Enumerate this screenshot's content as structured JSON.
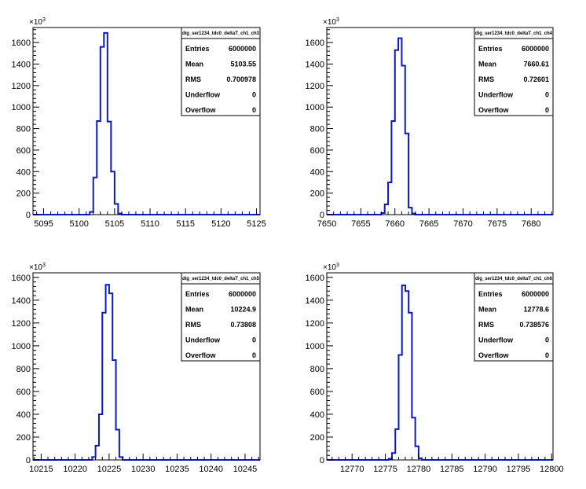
{
  "chart_data": [
    {
      "type": "histogram",
      "title": "dig_ser1234_tdc0_deltaT_ch1_ch3",
      "x_range": [
        5093.5,
        5125.5
      ],
      "y_range": [
        0,
        1740
      ],
      "x_ticks": [
        "5095",
        "5100",
        "5105",
        "5110",
        "5115",
        "5120",
        "5125"
      ],
      "x_tick_values": [
        5095,
        5100,
        5105,
        5110,
        5115,
        5120,
        5125
      ],
      "y_ticks": [
        "0",
        "200",
        "400",
        "600",
        "800",
        "1000",
        "1200",
        "1400",
        "1600"
      ],
      "y_tick_values": [
        0,
        200,
        400,
        600,
        800,
        1000,
        1200,
        1400,
        1600
      ],
      "y_exponent_base": "×10",
      "y_exponent": "3",
      "bin_edges": [
        5101.5,
        5102.0,
        5102.5,
        5103.0,
        5103.5,
        5104.0,
        5104.5,
        5105.0,
        5105.5,
        5106.0
      ],
      "values": [
        25,
        345,
        870,
        1560,
        1690,
        865,
        400,
        100,
        10
      ],
      "stats": {
        "Entries": "6000000",
        "Mean": "5103.55",
        "RMS": "0.700978",
        "Underflow": "0",
        "Overflow": "0"
      },
      "line_color": "#0b19c2"
    },
    {
      "type": "histogram",
      "title": "dig_ser1234_tdc0_deltaT_ch1_ch4",
      "x_range": [
        7650,
        7683.2
      ],
      "y_range": [
        0,
        1740
      ],
      "x_ticks": [
        "7650",
        "7655",
        "7660",
        "7665",
        "7670",
        "7675",
        "7680"
      ],
      "x_tick_values": [
        7650,
        7655,
        7660,
        7665,
        7670,
        7675,
        7680
      ],
      "y_ticks": [
        "0",
        "200",
        "400",
        "600",
        "800",
        "1000",
        "1200",
        "1400",
        "1600"
      ],
      "y_tick_values": [
        0,
        200,
        400,
        600,
        800,
        1000,
        1200,
        1400,
        1600
      ],
      "y_exponent_base": "×10",
      "y_exponent": "3",
      "bin_edges": [
        7658.0,
        7658.5,
        7659.0,
        7659.5,
        7660.0,
        7660.5,
        7661.0,
        7661.5,
        7662.0,
        7662.5,
        7663.0
      ],
      "values": [
        15,
        95,
        300,
        870,
        1530,
        1640,
        1385,
        755,
        65,
        10
      ],
      "stats": {
        "Entries": "6000000",
        "Mean": "7660.61",
        "RMS": "0.72601",
        "Underflow": "0",
        "Overflow": "0"
      },
      "line_color": "#0b19c2"
    },
    {
      "type": "histogram",
      "title": "dig_ser1234_tdc0_deltaT_ch1_ch5",
      "x_range": [
        10213.8,
        10247.2
      ],
      "y_range": [
        0,
        1640
      ],
      "x_ticks": [
        "10215",
        "10220",
        "10225",
        "10230",
        "10235",
        "10240",
        "10245"
      ],
      "x_tick_values": [
        10215,
        10220,
        10225,
        10230,
        10235,
        10240,
        10245
      ],
      "y_ticks": [
        "0",
        "200",
        "400",
        "600",
        "800",
        "1000",
        "1200",
        "1400",
        "1600"
      ],
      "y_tick_values": [
        0,
        200,
        400,
        600,
        800,
        1000,
        1200,
        1400,
        1600
      ],
      "y_exponent_base": "×10",
      "y_exponent": "3",
      "bin_edges": [
        10222.5,
        10223.0,
        10223.5,
        10224.0,
        10224.5,
        10225.0,
        10225.5,
        10226.0,
        10226.5,
        10227.0
      ],
      "values": [
        25,
        125,
        400,
        1290,
        1535,
        1460,
        875,
        265,
        25
      ],
      "stats": {
        "Entries": "6000000",
        "Mean": "10224.9",
        "RMS": "0.73808",
        "Underflow": "0",
        "Overflow": "0"
      },
      "line_color": "#0b19c2"
    },
    {
      "type": "histogram",
      "title": "dig_ser1234_tdc0_deltaT_ch1_ch6",
      "x_range": [
        12766.2,
        12800.2
      ],
      "y_range": [
        0,
        1640
      ],
      "x_ticks": [
        "12770",
        "12775",
        "12780",
        "12785",
        "12790",
        "12795",
        "12800"
      ],
      "x_tick_values": [
        12770,
        12775,
        12780,
        12785,
        12790,
        12795,
        12800
      ],
      "y_ticks": [
        "0",
        "200",
        "400",
        "600",
        "800",
        "1000",
        "1200",
        "1400",
        "1600"
      ],
      "y_tick_values": [
        0,
        200,
        400,
        600,
        800,
        1000,
        1200,
        1400,
        1600
      ],
      "y_exponent_base": "×10",
      "y_exponent": "3",
      "bin_edges": [
        12775.5,
        12776.0,
        12776.5,
        12777.0,
        12777.5,
        12778.0,
        12778.5,
        12779.0,
        12779.5,
        12780.0,
        12780.5
      ],
      "values": [
        10,
        60,
        270,
        920,
        1530,
        1480,
        1290,
        370,
        120,
        15
      ],
      "stats": {
        "Entries": "6000000",
        "Mean": "12778.6",
        "RMS": "0.738576",
        "Underflow": "0",
        "Overflow": "0"
      },
      "line_color": "#0b19c2"
    }
  ]
}
